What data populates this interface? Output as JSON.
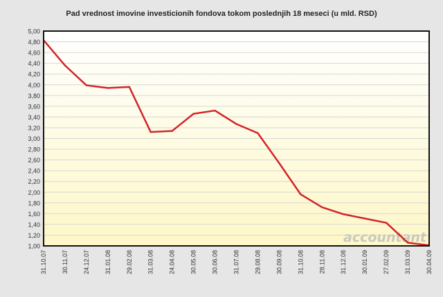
{
  "chart_data": {
    "type": "line",
    "title": "Pad vrednost imovine investicionih fondova tokom poslednjih 18 meseci (u mld. RSD)",
    "categories": [
      "31.10.07",
      "30.11.07",
      "24.12.07",
      "31.01.08",
      "29.02.08",
      "31.03.08",
      "24.04.08",
      "30.05.08",
      "30.06.08",
      "31.07.08",
      "29.08.08",
      "30.09.08",
      "31.10.08",
      "28.11.08",
      "31.12.08",
      "30.01.09",
      "27.02.09",
      "31.03.09",
      "30.04.09"
    ],
    "series": [
      {
        "values": [
          4.83,
          4.36,
          3.99,
          3.94,
          3.96,
          3.12,
          3.14,
          3.46,
          3.52,
          3.27,
          3.1,
          2.54,
          1.96,
          1.72,
          1.59,
          1.51,
          1.43,
          1.06,
          1.01
        ]
      }
    ],
    "ylim": [
      1.0,
      5.0
    ],
    "ytick_step": 0.2,
    "ytick_labels": [
      "1,00",
      "1,20",
      "1,40",
      "1,60",
      "1,80",
      "2,00",
      "2,20",
      "2,40",
      "2,60",
      "2,80",
      "3,00",
      "3,20",
      "3,40",
      "3,60",
      "3,80",
      "4,00",
      "4,20",
      "4,40",
      "4,60",
      "4,80",
      "5,00"
    ],
    "grid": true,
    "line_color": "#d2232a",
    "watermark": "accountant"
  }
}
